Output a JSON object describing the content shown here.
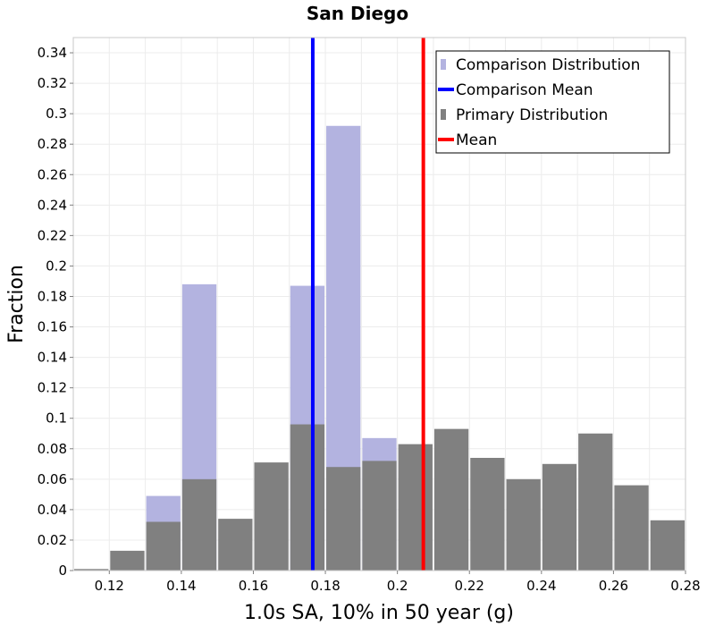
{
  "chart_data": {
    "type": "bar",
    "title": "San Diego",
    "xlabel": "1.0s SA, 10% in 50 year (g)",
    "ylabel": "Fraction",
    "xlim": [
      0.11,
      0.28
    ],
    "ylim": [
      0,
      0.35
    ],
    "xticks": [
      "0.12",
      "0.14",
      "0.16",
      "0.18",
      "0.2",
      "0.22",
      "0.24",
      "0.26",
      "0.28"
    ],
    "yticks": [
      "0",
      "0.02",
      "0.04",
      "0.06",
      "0.08",
      "0.1",
      "0.12",
      "0.14",
      "0.16",
      "0.18",
      "0.2",
      "0.22",
      "0.24",
      "0.26",
      "0.28",
      "0.3",
      "0.32",
      "0.34"
    ],
    "grid": true,
    "legend_position": "top-right",
    "bin_width": 0.01,
    "series": [
      {
        "name": "Comparison Distribution",
        "color": "#b3b3e0",
        "bins": [
          {
            "center": 0.135,
            "value": 0.049
          },
          {
            "center": 0.145,
            "value": 0.188
          },
          {
            "center": 0.175,
            "value": 0.187
          },
          {
            "center": 0.185,
            "value": 0.292
          },
          {
            "center": 0.195,
            "value": 0.087
          }
        ]
      },
      {
        "name": "Primary Distribution",
        "color": "#808080",
        "bins": [
          {
            "center": 0.115,
            "value": 0.001
          },
          {
            "center": 0.125,
            "value": 0.013
          },
          {
            "center": 0.135,
            "value": 0.032
          },
          {
            "center": 0.145,
            "value": 0.06
          },
          {
            "center": 0.155,
            "value": 0.034
          },
          {
            "center": 0.165,
            "value": 0.071
          },
          {
            "center": 0.175,
            "value": 0.096
          },
          {
            "center": 0.185,
            "value": 0.068
          },
          {
            "center": 0.195,
            "value": 0.072
          },
          {
            "center": 0.205,
            "value": 0.083
          },
          {
            "center": 0.215,
            "value": 0.093
          },
          {
            "center": 0.225,
            "value": 0.074
          },
          {
            "center": 0.235,
            "value": 0.06
          },
          {
            "center": 0.245,
            "value": 0.07
          },
          {
            "center": 0.255,
            "value": 0.09
          },
          {
            "center": 0.265,
            "value": 0.056
          },
          {
            "center": 0.275,
            "value": 0.033
          }
        ]
      }
    ],
    "lines": [
      {
        "name": "Comparison Mean",
        "x": 0.1765,
        "color": "#0000ff"
      },
      {
        "name": "Mean",
        "x": 0.2072,
        "color": "#ff0000"
      }
    ],
    "legend": [
      {
        "label": "Comparison Distribution",
        "kind": "bar",
        "color": "#b3b3e0"
      },
      {
        "label": "Comparison Mean",
        "kind": "line",
        "color": "#0000ff"
      },
      {
        "label": "Primary Distribution",
        "kind": "bar",
        "color": "#808080"
      },
      {
        "label": "Mean",
        "kind": "line",
        "color": "#ff0000"
      }
    ]
  }
}
